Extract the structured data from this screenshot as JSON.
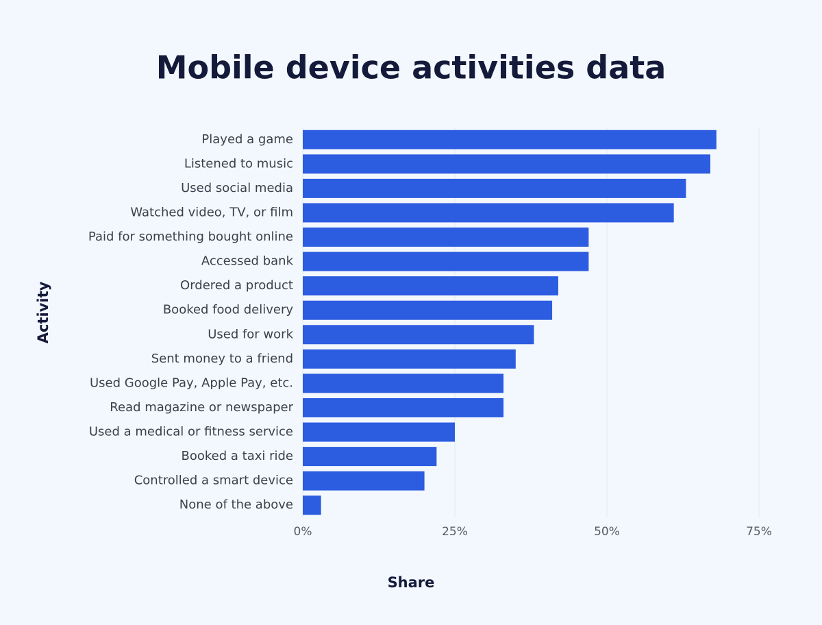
{
  "chart_data": {
    "type": "barh",
    "title": "Mobile device activities data",
    "x_label": "Share",
    "y_label": "Activity",
    "categories": [
      "Played a game",
      "Listened to music",
      "Used social media",
      "Watched video, TV, or film",
      "Paid for something bought online",
      "Accessed bank",
      "Ordered a product",
      "Booked food delivery",
      "Used for work",
      "Sent money to a friend",
      "Used Google Pay, Apple Pay, etc.",
      "Read magazine or newspaper",
      "Used a medical or fitness service",
      "Booked a taxi ride",
      "Controlled a smart device",
      "None of the above"
    ],
    "values": [
      68,
      67,
      63,
      61,
      47,
      47,
      42,
      41,
      38,
      35,
      33,
      33,
      25,
      22,
      20,
      3
    ],
    "color": "#2c5ce0",
    "xlim": [
      0,
      75
    ],
    "xticks": [
      {
        "value": 0,
        "label": "0%"
      },
      {
        "value": 25,
        "label": "25%"
      },
      {
        "value": 50,
        "label": "50%"
      },
      {
        "value": 75,
        "label": "75%"
      }
    ],
    "grid": true
  }
}
